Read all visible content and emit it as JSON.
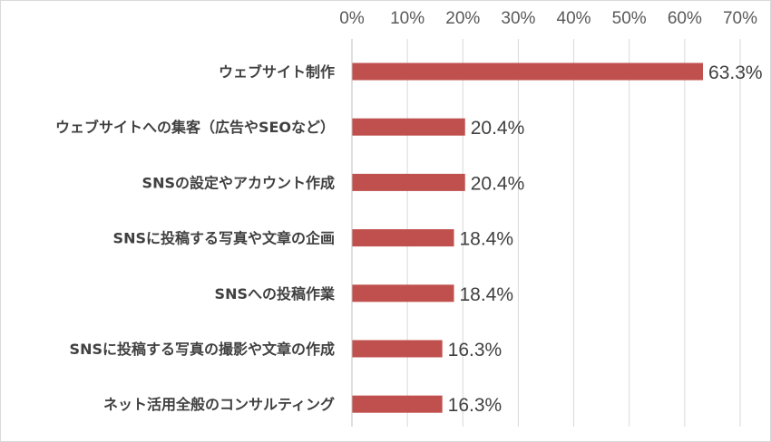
{
  "chart_data": {
    "type": "bar",
    "orientation": "horizontal",
    "categories": [
      "ウェブサイト制作",
      "ウェブサイトへの集客（広告やSEOなど）",
      "SNSの設定やアカウント作成",
      "SNSに投稿する写真や文章の企画",
      "SNSへの投稿作業",
      "SNSに投稿する写真の撮影や文章の作成",
      "ネット活用全般のコンサルティング"
    ],
    "values": [
      63.3,
      20.4,
      20.4,
      18.4,
      18.4,
      16.3,
      16.3
    ],
    "value_labels": [
      "63.3%",
      "20.4%",
      "20.4%",
      "18.4%",
      "18.4%",
      "16.3%",
      "16.3%"
    ],
    "x_ticks": [
      "0%",
      "10%",
      "20%",
      "30%",
      "40%",
      "50%",
      "60%",
      "70%"
    ],
    "xlim": [
      0,
      70
    ],
    "axis_position": "top",
    "grid": true,
    "bar_color": "#c0504d"
  }
}
